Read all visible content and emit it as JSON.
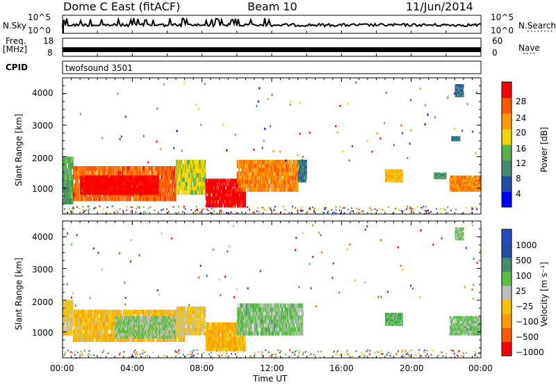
{
  "header": {
    "station": "Dome C East (fitACF)",
    "beam": "Beam 10",
    "date": "11/Jun/2014"
  },
  "noise_panel": {
    "left_label": "N.Sky",
    "left_ticks": [
      "10^5",
      "10^0"
    ],
    "right_label": "N.Search",
    "right_ticks": [
      "10^5",
      "10^0"
    ]
  },
  "freq_panel": {
    "left_label_1": "Freq.",
    "left_label_2": "[MHz]",
    "left_ticks": [
      "18",
      "8"
    ],
    "right_label": "Nave",
    "right_ticks": [
      "60",
      "0"
    ]
  },
  "cpid": {
    "label": "CPID",
    "value": "twofsound 3501"
  },
  "colors": {
    "power_scale": [
      "#0000ff",
      "#1f4ea6",
      "#3f8d6e",
      "#58b04a",
      "#f5d200",
      "#ff9a00",
      "#ff5a00",
      "#ff0000"
    ],
    "velocity_scale": [
      "#ff0000",
      "#ff5a00",
      "#ff9a00",
      "#f5c400",
      "#bdbdbd",
      "#58c040",
      "#3f8d6e",
      "#1f4ea6",
      "#2050c0"
    ]
  },
  "chart_data": [
    {
      "type": "heatmap",
      "title": "",
      "ylabel": "Slant Range [km]",
      "xlabel": "",
      "ylim": [
        180,
        4500
      ],
      "y_ticks": [
        "4000",
        "3000",
        "2000",
        "1000"
      ],
      "x_ticks": [
        "00:00",
        "04:00",
        "08:00",
        "12:00",
        "16:00",
        "20:00",
        "00:00"
      ],
      "colorbar": {
        "label": "Power [dB]",
        "ticks": [
          "28",
          "24",
          "20",
          "16",
          "12",
          "8",
          "4"
        ],
        "range": [
          0,
          30
        ]
      },
      "regions": [
        {
          "t0": 0.0,
          "t1": 0.6,
          "r0": 500,
          "r1": 2000,
          "value": 12
        },
        {
          "t0": 0.6,
          "t1": 6.5,
          "r0": 600,
          "r1": 1700,
          "value": 24
        },
        {
          "t0": 1.0,
          "t1": 5.5,
          "r0": 800,
          "r1": 1400,
          "value": 29
        },
        {
          "t0": 6.5,
          "t1": 8.2,
          "r0": 800,
          "r1": 1900,
          "value": 16
        },
        {
          "t0": 8.2,
          "t1": 10.5,
          "r0": 400,
          "r1": 1300,
          "value": 29
        },
        {
          "t0": 10.0,
          "t1": 13.5,
          "r0": 900,
          "r1": 1900,
          "value": 22
        },
        {
          "t0": 13.5,
          "t1": 14.0,
          "r0": 1200,
          "r1": 1900,
          "value": 8
        },
        {
          "t0": 18.5,
          "t1": 19.5,
          "r0": 1200,
          "r1": 1600,
          "value": 18
        },
        {
          "t0": 21.3,
          "t1": 22.0,
          "r0": 1300,
          "r1": 1500,
          "value": 10
        },
        {
          "t0": 22.2,
          "t1": 24.0,
          "r0": 900,
          "r1": 1400,
          "value": 22
        },
        {
          "t0": 22.5,
          "t1": 23.0,
          "r0": 3900,
          "r1": 4300,
          "value": 8
        },
        {
          "t0": 22.3,
          "t1": 22.8,
          "r0": 2500,
          "r1": 2650,
          "value": 8
        }
      ]
    },
    {
      "type": "heatmap",
      "title": "",
      "ylabel": "Slant Range [km]",
      "xlabel": "Time UT",
      "ylim": [
        180,
        4500
      ],
      "y_ticks": [
        "4000",
        "3000",
        "2000",
        "1000"
      ],
      "x_ticks": [
        "00:00",
        "04:00",
        "08:00",
        "12:00",
        "16:00",
        "20:00",
        "00:00"
      ],
      "colorbar": {
        "label": "Velocity [m s⁻¹]",
        "ticks": [
          "1000",
          "500",
          "100",
          "25",
          "−25",
          "−100",
          "−500",
          "−1000"
        ],
        "range": [
          -1200,
          1200
        ]
      },
      "regions": [
        {
          "t0": 0.0,
          "t1": 0.6,
          "r0": 900,
          "r1": 2000,
          "value": -200
        },
        {
          "t0": 0.6,
          "t1": 7.0,
          "r0": 700,
          "r1": 1700,
          "value": -300
        },
        {
          "t0": 3.0,
          "t1": 6.5,
          "r0": 800,
          "r1": 1500,
          "value": 150
        },
        {
          "t0": 6.5,
          "t1": 8.2,
          "r0": 900,
          "r1": 1800,
          "value": -200
        },
        {
          "t0": 8.2,
          "t1": 10.5,
          "r0": 400,
          "r1": 1300,
          "value": -400
        },
        {
          "t0": 10.0,
          "t1": 13.8,
          "r0": 900,
          "r1": 1900,
          "value": 200
        },
        {
          "t0": 18.5,
          "t1": 19.5,
          "r0": 1200,
          "r1": 1600,
          "value": 300
        },
        {
          "t0": 22.2,
          "t1": 24.0,
          "r0": 900,
          "r1": 1500,
          "value": 200
        },
        {
          "t0": 22.5,
          "t1": 23.0,
          "r0": 3900,
          "r1": 4300,
          "value": 150
        }
      ]
    }
  ]
}
